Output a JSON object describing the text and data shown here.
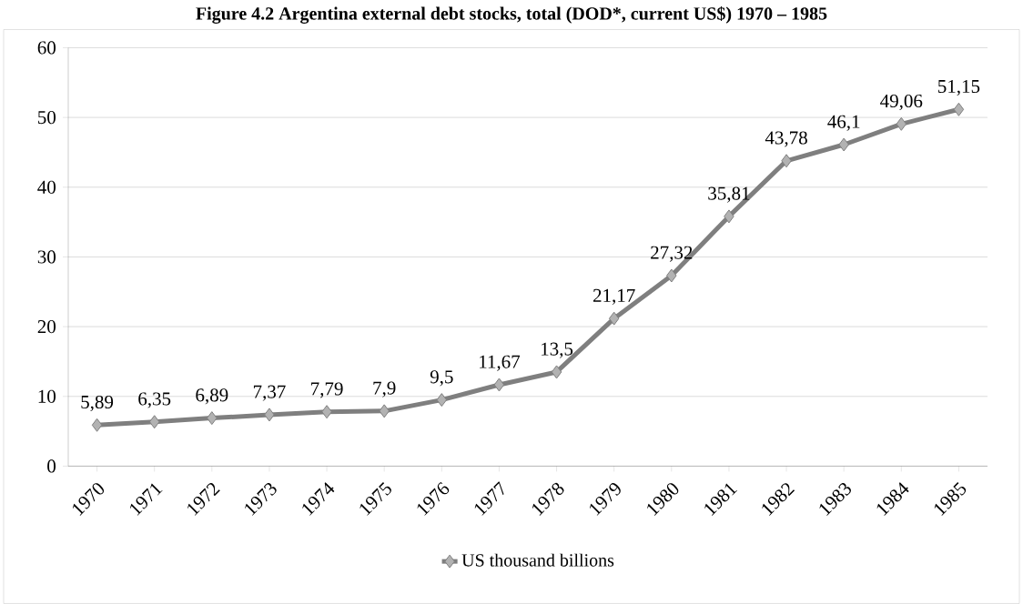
{
  "chart_data": {
    "type": "line",
    "title": "Figure 4.2 Argentina external debt stocks, total (DOD*, current US$) 1970 – 1985",
    "categories": [
      "1970",
      "1971",
      "1972",
      "1973",
      "1974",
      "1975",
      "1976",
      "1977",
      "1978",
      "1979",
      "1980",
      "1981",
      "1982",
      "1983",
      "1984",
      "1985"
    ],
    "series": [
      {
        "name": "US thousand billions",
        "color": "#7f7f7f",
        "values": [
          5.89,
          6.35,
          6.89,
          7.37,
          7.79,
          7.9,
          9.5,
          11.67,
          13.5,
          21.17,
          27.32,
          35.81,
          43.78,
          46.1,
          49.06,
          51.15
        ],
        "value_labels": [
          "5,89",
          "6,35",
          "6,89",
          "7,37",
          "7,79",
          "7,9",
          "9,5",
          "11,67",
          "13,5",
          "21,17",
          "27,32",
          "35,81",
          "43,78",
          "46,1",
          "49,06",
          "51,15"
        ]
      }
    ],
    "ylim": [
      0,
      60
    ],
    "yticks": [
      0,
      10,
      20,
      30,
      40,
      50,
      60
    ],
    "grid": "y",
    "legend": "bottom",
    "marker": "diamond",
    "line_style": "solid"
  }
}
